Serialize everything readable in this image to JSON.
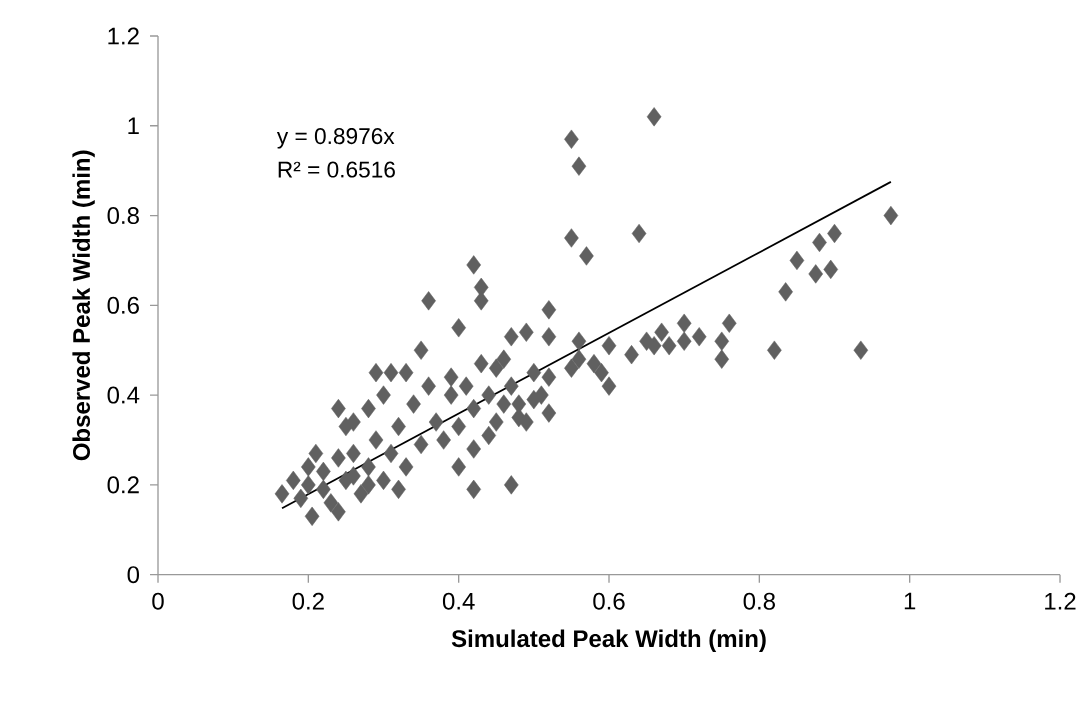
{
  "chart_data": {
    "type": "scatter",
    "xlabel": "Simulated Peak Width (min)",
    "ylabel": "Observed Peak Width (min)",
    "annotations": [
      "y = 0.8976x",
      "R² = 0.6516"
    ],
    "xlim": [
      0,
      1.2
    ],
    "ylim": [
      0,
      1.2
    ],
    "xticks": [
      0,
      0.2,
      0.4,
      0.6,
      0.8,
      1,
      1.2
    ],
    "yticks": [
      0,
      0.2,
      0.4,
      0.6,
      0.8,
      1,
      1.2
    ],
    "grid": false,
    "legend": false,
    "series": [
      {
        "marker": "diamond",
        "color": "#606060",
        "x": [
          0.55,
          0.56,
          0.66,
          0.55,
          0.57,
          0.64,
          0.975,
          0.935,
          0.82,
          0.9,
          0.88,
          0.85,
          0.835,
          0.875,
          0.895,
          0.76,
          0.75,
          0.75,
          0.7,
          0.72,
          0.7,
          0.68,
          0.67,
          0.66,
          0.65,
          0.63,
          0.6,
          0.6,
          0.59,
          0.58,
          0.56,
          0.56,
          0.55,
          0.52,
          0.52,
          0.52,
          0.52,
          0.51,
          0.5,
          0.49,
          0.48,
          0.47,
          0.47,
          0.46,
          0.45,
          0.44,
          0.43,
          0.43,
          0.42,
          0.42,
          0.42,
          0.4,
          0.4,
          0.39,
          0.36,
          0.35,
          0.33,
          0.31,
          0.29,
          0.28,
          0.26,
          0.25,
          0.24,
          0.165,
          0.18,
          0.19,
          0.2,
          0.2,
          0.205,
          0.21,
          0.22,
          0.22,
          0.23,
          0.24,
          0.24,
          0.25,
          0.26,
          0.27,
          0.28,
          0.29,
          0.3,
          0.31,
          0.32,
          0.33,
          0.34,
          0.35,
          0.36,
          0.37,
          0.38,
          0.39,
          0.4,
          0.41,
          0.42,
          0.43,
          0.44,
          0.45,
          0.46,
          0.47,
          0.48,
          0.49,
          0.5,
          0.3,
          0.32,
          0.26,
          0.28
        ],
        "values": [
          0.97,
          0.91,
          1.02,
          0.75,
          0.71,
          0.76,
          0.8,
          0.5,
          0.5,
          0.76,
          0.74,
          0.7,
          0.63,
          0.67,
          0.68,
          0.56,
          0.52,
          0.48,
          0.56,
          0.53,
          0.52,
          0.51,
          0.54,
          0.51,
          0.52,
          0.49,
          0.51,
          0.42,
          0.45,
          0.47,
          0.48,
          0.52,
          0.46,
          0.59,
          0.53,
          0.44,
          0.36,
          0.4,
          0.45,
          0.54,
          0.35,
          0.2,
          0.53,
          0.48,
          0.34,
          0.31,
          0.64,
          0.61,
          0.69,
          0.19,
          0.28,
          0.55,
          0.24,
          0.44,
          0.61,
          0.5,
          0.45,
          0.45,
          0.45,
          0.37,
          0.34,
          0.33,
          0.37,
          0.18,
          0.21,
          0.17,
          0.24,
          0.2,
          0.13,
          0.27,
          0.19,
          0.23,
          0.16,
          0.26,
          0.14,
          0.21,
          0.27,
          0.18,
          0.24,
          0.3,
          0.21,
          0.27,
          0.33,
          0.24,
          0.38,
          0.29,
          0.42,
          0.34,
          0.3,
          0.4,
          0.33,
          0.42,
          0.37,
          0.47,
          0.4,
          0.46,
          0.38,
          0.42,
          0.38,
          0.34,
          0.39,
          0.4,
          0.19,
          0.22,
          0.2
        ]
      },
      {
        "type": "line",
        "marker": "none",
        "color": "#000000",
        "x": [
          0.165,
          0.975
        ],
        "values": [
          0.148,
          0.875
        ]
      }
    ]
  }
}
